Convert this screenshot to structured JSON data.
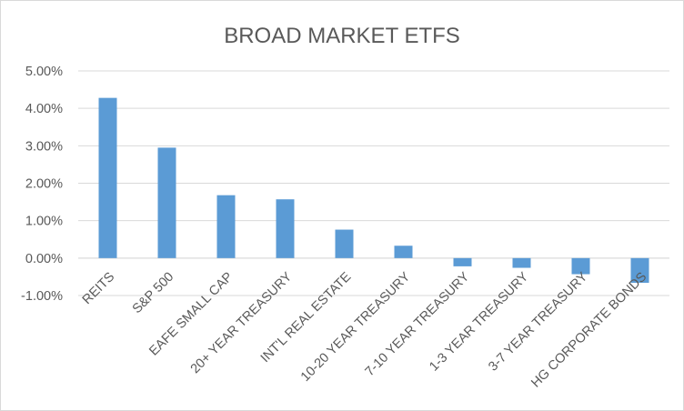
{
  "chart_data": {
    "type": "bar",
    "title": "BROAD MARKET ETFS",
    "xlabel": "",
    "ylabel": "",
    "categories": [
      "REITS",
      "S&P 500",
      "EAFE SMALL CAP",
      "20+ YEAR TREASURY",
      "INT'L REAL ESTATE",
      "10-20 YEAR TREASURY",
      "7-10 YEAR TREASURY",
      "1-3 YEAR TREASURY",
      "3-7 YEAR TREASURY",
      "HG CORPORATE BONDS"
    ],
    "values": [
      4.28,
      2.95,
      1.68,
      1.57,
      0.76,
      0.33,
      -0.22,
      -0.26,
      -0.43,
      -0.66
    ],
    "ylim": [
      -1,
      5
    ],
    "yticks": [
      5,
      4,
      3,
      2,
      1,
      0,
      -1
    ],
    "ytick_labels": [
      "5.00%",
      "4.00%",
      "3.00%",
      "2.00%",
      "1.00%",
      "0.00%",
      "-1.00%"
    ],
    "grid": true,
    "legend": "none",
    "bar_color": "#5b9bd5"
  }
}
